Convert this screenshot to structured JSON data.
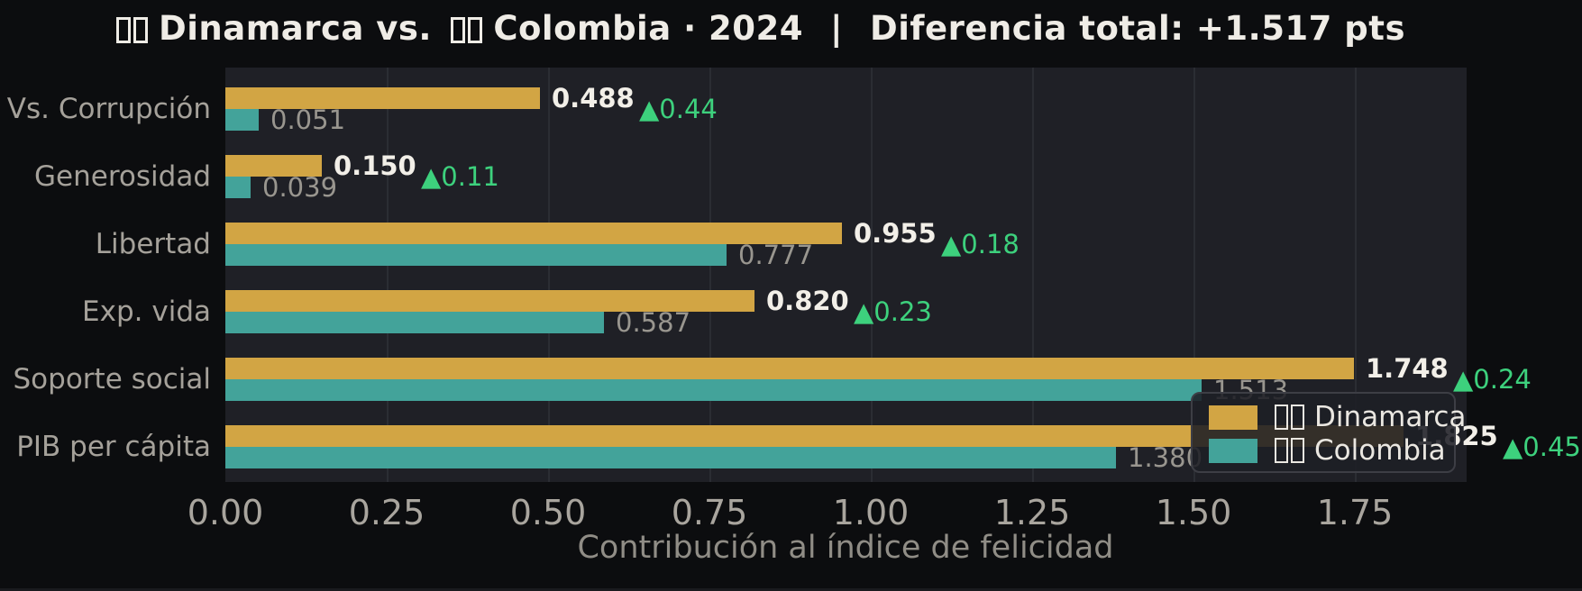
{
  "title": {
    "matchup_left": "Dinamarca vs.",
    "matchup_right": "Colombia · 2024",
    "separator": "|",
    "difference": "Diferencia total: +1.517 pts"
  },
  "legend": {
    "dinamarca": "Dinamarca",
    "colombia": "Colombia"
  },
  "colors": {
    "page_bg": "#0c0d0f",
    "panel_bg": "#1f2026",
    "gridline": "#2b2d33",
    "dinamarca_bar": "#d2a544",
    "colombia_bar": "#43a39a",
    "diff_green": "#3dd17d",
    "dinamarca_label": "#f2efe8",
    "colombia_label": "#99968f"
  },
  "chart_data": {
    "type": "bar",
    "orientation": "horizontal",
    "title": "🇩🇰 Dinamarca vs. 🇨🇴 Colombia · 2024  |  Diferencia total: +1.517 pts",
    "xlabel": "Contribución al índice de felicidad",
    "ylabel": "",
    "xlim": [
      0,
      1.923
    ],
    "grid": true,
    "legend_position": "lower right",
    "xticks": [
      "0.00",
      "0.25",
      "0.50",
      "0.75",
      "1.00",
      "1.25",
      "1.50",
      "1.75"
    ],
    "xtick_values": [
      0.0,
      0.25,
      0.5,
      0.75,
      1.0,
      1.25,
      1.5,
      1.75
    ],
    "categories": [
      "Vs. Corrupción",
      "Generosidad",
      "Libertad",
      "Exp. vida",
      "Soporte social",
      "PIB per cápita"
    ],
    "series": [
      {
        "name": "🇩🇰 Dinamarca",
        "color": "#d2a544",
        "values": [
          0.488,
          0.15,
          0.955,
          0.82,
          1.748,
          1.825
        ],
        "labels": [
          "0.488",
          "0.150",
          "0.955",
          "0.820",
          "1.748",
          "1.825"
        ]
      },
      {
        "name": "🇨🇴 Colombia",
        "color": "#43a39a",
        "values": [
          0.051,
          0.039,
          0.777,
          0.587,
          1.513,
          1.38
        ],
        "labels": [
          "0.051",
          "0.039",
          "0.777",
          "0.587",
          "1.513",
          "1.380"
        ]
      }
    ],
    "diff_annotations": {
      "color": "#3dd17d",
      "labels": [
        "▲0.44",
        "▲0.11",
        "▲0.18",
        "▲0.23",
        "▲0.24",
        "▲0.45"
      ],
      "values": [
        0.44,
        0.11,
        0.18,
        0.23,
        0.24,
        0.45
      ]
    }
  }
}
